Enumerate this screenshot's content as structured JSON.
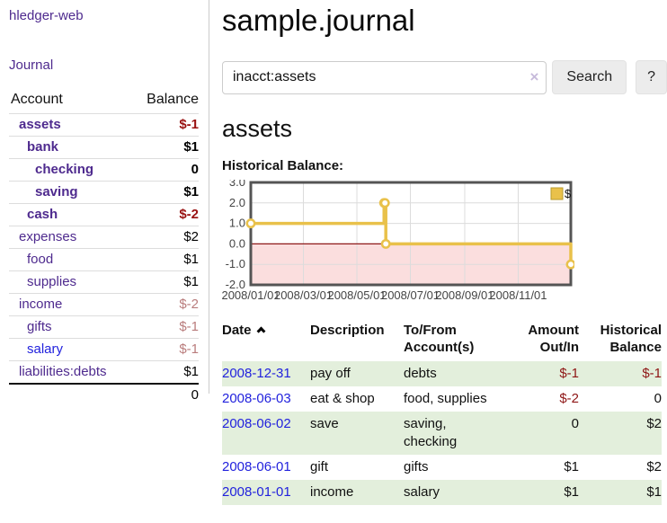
{
  "sidebar": {
    "brand": "hledger-web",
    "journal_link": "Journal",
    "accounts_table": {
      "headers": {
        "account": "Account",
        "balance": "Balance"
      },
      "rows": [
        {
          "name": "assets",
          "indent": 1,
          "bold": true,
          "balance": "$-1",
          "balance_style": "neg-strong",
          "unvisited": false
        },
        {
          "name": "bank",
          "indent": 2,
          "bold": true,
          "balance": "$1",
          "balance_style": "pos",
          "unvisited": false
        },
        {
          "name": "checking",
          "indent": 3,
          "bold": true,
          "balance": "0",
          "balance_style": "pos",
          "unvisited": false
        },
        {
          "name": "saving",
          "indent": 3,
          "bold": true,
          "balance": "$1",
          "balance_style": "pos",
          "unvisited": false
        },
        {
          "name": "cash",
          "indent": 2,
          "bold": true,
          "balance": "$-2",
          "balance_style": "neg-strong",
          "unvisited": false
        },
        {
          "name": "expenses",
          "indent": 1,
          "bold": false,
          "balance": "$2",
          "balance_style": "pos",
          "unvisited": false
        },
        {
          "name": "food",
          "indent": 2,
          "bold": false,
          "balance": "$1",
          "balance_style": "pos",
          "unvisited": false
        },
        {
          "name": "supplies",
          "indent": 2,
          "bold": false,
          "balance": "$1",
          "balance_style": "pos",
          "unvisited": false
        },
        {
          "name": "income",
          "indent": 1,
          "bold": false,
          "balance": "$-2",
          "balance_style": "neg-soft",
          "unvisited": false
        },
        {
          "name": "gifts",
          "indent": 2,
          "bold": false,
          "balance": "$-1",
          "balance_style": "neg-soft",
          "unvisited": false
        },
        {
          "name": "salary",
          "indent": 2,
          "bold": false,
          "balance": "$-1",
          "balance_style": "neg-soft",
          "unvisited": true
        },
        {
          "name": "liabilities:debts",
          "indent": 1,
          "bold": false,
          "balance": "$1",
          "balance_style": "pos",
          "unvisited": false
        }
      ],
      "total": "0"
    }
  },
  "header": {
    "title": "sample.journal"
  },
  "search": {
    "value": "inacct:assets",
    "clear_icon": "×",
    "button_label": "Search",
    "help_label": "?"
  },
  "account_page": {
    "title": "assets",
    "chart_label": "Historical Balance:"
  },
  "chart_data": {
    "type": "line",
    "step": true,
    "series": [
      {
        "name": "$",
        "color": "#e9c14a",
        "points": [
          {
            "x": "2008-01-01",
            "y": 1
          },
          {
            "x": "2008-06-01",
            "y": 2
          },
          {
            "x": "2008-06-02",
            "y": 2
          },
          {
            "x": "2008-06-03",
            "y": 0
          },
          {
            "x": "2008-12-31",
            "y": -1
          }
        ]
      }
    ],
    "x_ticks": [
      "2008/01/01",
      "2008/03/01",
      "2008/05/01",
      "2008/07/01",
      "2008/09/01",
      "2008/11/01"
    ],
    "x_range": [
      "2008-01-01",
      "2008-12-31"
    ],
    "y_ticks": [
      3.0,
      2.0,
      1.0,
      0.0,
      -1.0,
      -2.0
    ],
    "y_range": [
      -2,
      3
    ],
    "grid": true,
    "legend_position": "top-right",
    "colors": {
      "negative_region": "#fbdede",
      "zero_line": "#8f1a1a",
      "grid_line": "#dcdcdc",
      "border": "#545454",
      "tick_text": "#444444",
      "point_fill": "#ffffff"
    }
  },
  "register": {
    "headers": {
      "date": "Date",
      "description": "Description",
      "accounts": "To/From Account(s)",
      "amount": "Amount Out/In",
      "historical": "Historical Balance"
    },
    "rows": [
      {
        "date": "2008-12-31",
        "description": "pay off",
        "accounts": "debts",
        "amount": "$-1",
        "amount_neg": true,
        "historical": "$-1",
        "historical_neg": true,
        "shaded": true
      },
      {
        "date": "2008-06-03",
        "description": "eat & shop",
        "accounts": "food, supplies",
        "amount": "$-2",
        "amount_neg": true,
        "historical": "0",
        "historical_neg": false,
        "shaded": false
      },
      {
        "date": "2008-06-02",
        "description": "save",
        "accounts": "saving, checking",
        "amount": "0",
        "amount_neg": false,
        "historical": "$2",
        "historical_neg": false,
        "shaded": true
      },
      {
        "date": "2008-06-01",
        "description": "gift",
        "accounts": "gifts",
        "amount": "$1",
        "amount_neg": false,
        "historical": "$2",
        "historical_neg": false,
        "shaded": false
      },
      {
        "date": "2008-01-01",
        "description": "income",
        "accounts": "salary",
        "amount": "$1",
        "amount_neg": false,
        "historical": "$1",
        "historical_neg": false,
        "shaded": true
      }
    ]
  }
}
